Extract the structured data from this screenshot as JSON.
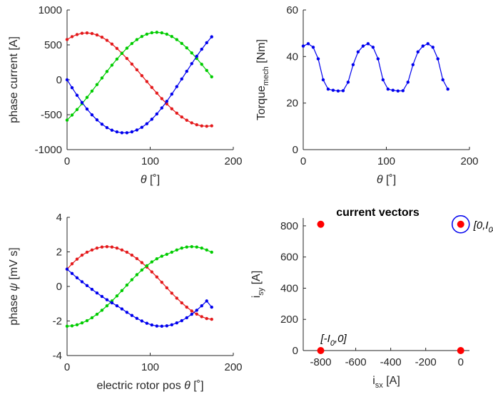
{
  "chart_data": [
    {
      "type": "line",
      "xlabel": {
        "symbol": "θ",
        "unit": " [˚]"
      },
      "ylabel": "phase current [A]",
      "xlim": [
        0,
        200
      ],
      "ylim": [
        -1000,
        1000
      ],
      "xticks": [
        "0",
        "100",
        "200"
      ],
      "yticks": [
        "-1000",
        "-500",
        "0",
        "500",
        "1000"
      ],
      "x": [
        0,
        6,
        12,
        18,
        24,
        30,
        36,
        42,
        48,
        54,
        60,
        66,
        72,
        78,
        84,
        90,
        96,
        102,
        108,
        114,
        120,
        126,
        132,
        138,
        144,
        150,
        156,
        162,
        168,
        174
      ],
      "series": [
        {
          "color": "#e41a1c",
          "values": [
            577,
            618,
            648,
            666,
            671,
            663,
            642,
            610,
            566,
            512,
            449,
            380,
            305,
            225,
            143,
            59,
            -25,
            -109,
            -191,
            -270,
            -345,
            -415,
            -478,
            -533,
            -579,
            -617,
            -643,
            -660,
            -665,
            -659
          ]
        },
        {
          "color": "#00cc00",
          "values": [
            -577,
            -505,
            -426,
            -341,
            -252,
            -161,
            -68,
            26,
            119,
            210,
            297,
            378,
            453,
            520,
            576,
            621,
            654,
            674,
            680,
            673,
            653,
            620,
            576,
            521,
            457,
            385,
            306,
            222,
            134,
            43
          ]
        },
        {
          "color": "#0000ee",
          "values": [
            0,
            -113,
            -222,
            -325,
            -419,
            -502,
            -574,
            -636,
            -685,
            -722,
            -746,
            -758,
            -758,
            -745,
            -719,
            -680,
            -629,
            -565,
            -489,
            -403,
            -308,
            -205,
            -98,
            12,
            122,
            232,
            337,
            438,
            531,
            616
          ]
        }
      ]
    },
    {
      "type": "line",
      "xlabel": {
        "symbol": "θ",
        "unit": " [˚]"
      },
      "ylabel": {
        "main": "Torque",
        "sub": "mech",
        "unit": " [Nm]"
      },
      "xlim": [
        0,
        200
      ],
      "ylim": [
        0,
        60
      ],
      "xticks": [
        "0",
        "100",
        "200"
      ],
      "yticks": [
        "0",
        "20",
        "40",
        "60"
      ],
      "x": [
        0,
        6,
        12,
        18,
        24,
        30,
        36,
        42,
        48,
        54,
        60,
        66,
        72,
        78,
        84,
        90,
        96,
        102,
        108,
        114,
        120,
        126,
        132,
        138,
        144,
        150,
        156,
        162,
        168,
        174
      ],
      "series": [
        {
          "color": "#0000ee",
          "values": [
            44.5,
            45.5,
            44,
            39,
            30,
            26,
            25.5,
            25.2,
            25.3,
            29,
            36.5,
            42,
            44.5,
            45.5,
            44,
            39,
            30,
            26,
            25.5,
            25.2,
            25.3,
            29,
            36.5,
            42,
            44.5,
            45.5,
            44,
            39,
            30,
            26
          ]
        }
      ]
    },
    {
      "type": "line",
      "xlabel": {
        "text": "electric rotor pos ",
        "symbol": "θ",
        "unit": " [˚]"
      },
      "ylabel": {
        "text": "phase ",
        "symbol": "ψ",
        "unit": " [mV s]"
      },
      "xlim": [
        0,
        200
      ],
      "ylim": [
        -4,
        4
      ],
      "xticks": [
        "0",
        "100",
        "200"
      ],
      "yticks": [
        "-4",
        "-2",
        "0",
        "2",
        "4"
      ],
      "x": [
        0,
        6,
        12,
        18,
        24,
        30,
        36,
        42,
        48,
        54,
        60,
        66,
        72,
        78,
        84,
        90,
        96,
        102,
        108,
        114,
        120,
        126,
        132,
        138,
        144,
        150,
        156,
        162,
        168,
        174
      ],
      "series": [
        {
          "color": "#e41a1c",
          "values": [
            1.0,
            1.31,
            1.58,
            1.81,
            1.98,
            2.11,
            2.22,
            2.28,
            2.3,
            2.28,
            2.22,
            2.11,
            1.98,
            1.81,
            1.61,
            1.38,
            1.12,
            0.84,
            0.55,
            0.24,
            -0.08,
            -0.39,
            -0.68,
            -0.95,
            -1.2,
            -1.42,
            -1.6,
            -1.75,
            -1.86,
            -1.9
          ]
        },
        {
          "color": "#00cc00",
          "values": [
            -2.3,
            -2.28,
            -2.22,
            -2.11,
            -1.98,
            -1.81,
            -1.61,
            -1.38,
            -1.12,
            -0.84,
            -0.55,
            -0.24,
            0.08,
            0.39,
            0.68,
            0.95,
            1.2,
            1.42,
            1.6,
            1.75,
            1.86,
            1.98,
            2.11,
            2.22,
            2.28,
            2.3,
            2.28,
            2.22,
            2.11,
            1.98
          ]
        },
        {
          "color": "#0000ee",
          "values": [
            1.0,
            0.75,
            0.5,
            0.27,
            0.05,
            -0.17,
            -0.38,
            -0.58,
            -0.77,
            -0.95,
            -1.12,
            -1.3,
            -1.5,
            -1.68,
            -1.85,
            -2.0,
            -2.13,
            -2.23,
            -2.29,
            -2.3,
            -2.28,
            -2.22,
            -2.11,
            -1.98,
            -1.81,
            -1.61,
            -1.38,
            -1.12,
            -0.84,
            -1.2
          ]
        }
      ]
    },
    {
      "type": "scatter",
      "title": "current vectors",
      "xlabel": {
        "main": "i",
        "sub": "sx",
        "unit": " [A]"
      },
      "ylabel": {
        "main": "i",
        "sub": "sy",
        "unit": " [A]"
      },
      "xlim": [
        -900,
        50
      ],
      "ylim": [
        0,
        850
      ],
      "xticks": [
        "-800",
        "-600",
        "-400",
        "-200",
        "0"
      ],
      "yticks": [
        "0",
        "200",
        "400",
        "600",
        "800"
      ],
      "points": [
        {
          "x": -800,
          "y": 810,
          "color": "#ff0000"
        },
        {
          "x": -800,
          "y": 0,
          "color": "#ff0000"
        },
        {
          "x": 0,
          "y": 0,
          "color": "#ff0000"
        },
        {
          "x": 0,
          "y": 810,
          "color": "#ff0000",
          "highlight": "#0000ee"
        }
      ],
      "annotations": [
        {
          "pre": "[0,I",
          "sub": "0",
          "post": "]",
          "x": 0,
          "y": 810
        },
        {
          "pre": "[-I",
          "sub": "0",
          "post": ",0]",
          "x": -800,
          "y": 0
        }
      ]
    }
  ]
}
